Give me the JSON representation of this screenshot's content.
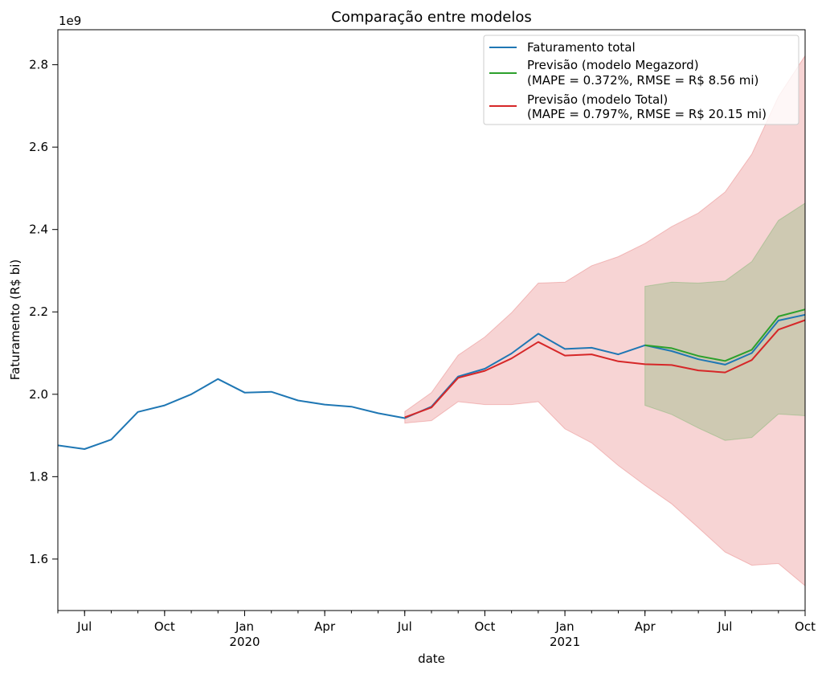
{
  "chart_data": {
    "type": "line",
    "title": "Comparação entre modelos",
    "xlabel": "date",
    "ylabel": "Faturamento (R$ bi)",
    "y_offset_label": "1e9",
    "ylim": [
      1.475,
      2.885
    ],
    "xlim": [
      "2019-06",
      "2021-10"
    ],
    "grid": false,
    "legend_position": "top-right",
    "x_ticks": [
      {
        "date": "2019-07",
        "label": "Jul",
        "sublabel": ""
      },
      {
        "date": "2019-10",
        "label": "Oct",
        "sublabel": ""
      },
      {
        "date": "2020-01",
        "label": "Jan",
        "sublabel": "2020"
      },
      {
        "date": "2020-04",
        "label": "Apr",
        "sublabel": ""
      },
      {
        "date": "2020-07",
        "label": "Jul",
        "sublabel": ""
      },
      {
        "date": "2020-10",
        "label": "Oct",
        "sublabel": ""
      },
      {
        "date": "2021-01",
        "label": "Jan",
        "sublabel": "2021"
      },
      {
        "date": "2021-04",
        "label": "Apr",
        "sublabel": ""
      },
      {
        "date": "2021-07",
        "label": "Jul",
        "sublabel": ""
      },
      {
        "date": "2021-10",
        "label": "Oct",
        "sublabel": ""
      }
    ],
    "y_ticks": [
      "1.6",
      "1.8",
      "2.0",
      "2.2",
      "2.4",
      "2.6",
      "2.8"
    ],
    "series": [
      {
        "name": "Faturamento total",
        "color": "#1f77b4",
        "x": [
          "2019-06",
          "2019-07",
          "2019-08",
          "2019-09",
          "2019-10",
          "2019-11",
          "2019-12",
          "2020-01",
          "2020-02",
          "2020-03",
          "2020-04",
          "2020-05",
          "2020-06",
          "2020-07",
          "2020-08",
          "2020-09",
          "2020-10",
          "2020-11",
          "2020-12",
          "2021-01",
          "2021-02",
          "2021-03",
          "2021-04",
          "2021-05",
          "2021-06",
          "2021-07",
          "2021-08",
          "2021-09",
          "2021-10"
        ],
        "y": [
          1.876,
          1.867,
          1.89,
          1.957,
          1.973,
          2.0,
          2.037,
          2.004,
          2.006,
          1.985,
          1.975,
          1.97,
          1.954,
          1.942,
          1.97,
          2.043,
          2.062,
          2.099,
          2.147,
          2.11,
          2.113,
          2.097,
          2.119,
          2.105,
          2.085,
          2.072,
          2.1,
          2.179,
          2.193
        ]
      },
      {
        "name": "Previsão (modelo Megazord)",
        "name_line2": "(MAPE = 0.372%, RMSE = R$ 8.56 mi)",
        "color": "#2ca02c",
        "x": [
          "2021-04",
          "2021-05",
          "2021-06",
          "2021-07",
          "2021-08",
          "2021-09",
          "2021-10"
        ],
        "y": [
          2.119,
          2.112,
          2.093,
          2.081,
          2.108,
          2.189,
          2.206
        ],
        "band_lower": [
          1.973,
          1.951,
          1.918,
          1.888,
          1.895,
          1.952,
          1.948
        ],
        "band_upper": [
          2.262,
          2.272,
          2.27,
          2.275,
          2.322,
          2.422,
          2.464
        ]
      },
      {
        "name": "Previsão (modelo Total)",
        "name_line2": "(MAPE = 0.797%, RMSE = R$ 20.15 mi)",
        "color": "#d62728",
        "x": [
          "2020-07",
          "2020-08",
          "2020-09",
          "2020-10",
          "2020-11",
          "2020-12",
          "2021-01",
          "2021-02",
          "2021-03",
          "2021-04",
          "2021-05",
          "2021-06",
          "2021-07",
          "2021-08",
          "2021-09",
          "2021-10"
        ],
        "y": [
          1.944,
          1.968,
          2.04,
          2.057,
          2.087,
          2.127,
          2.094,
          2.097,
          2.08,
          2.073,
          2.071,
          2.058,
          2.053,
          2.083,
          2.157,
          2.18
        ],
        "band_lower": [
          1.93,
          1.936,
          1.982,
          1.975,
          1.975,
          1.982,
          1.916,
          1.882,
          1.827,
          1.779,
          1.734,
          1.676,
          1.617,
          1.585,
          1.589,
          1.535
        ],
        "band_upper": [
          1.958,
          2.004,
          2.095,
          2.139,
          2.198,
          2.27,
          2.272,
          2.312,
          2.334,
          2.366,
          2.407,
          2.44,
          2.491,
          2.583,
          2.723,
          2.822
        ]
      }
    ]
  }
}
